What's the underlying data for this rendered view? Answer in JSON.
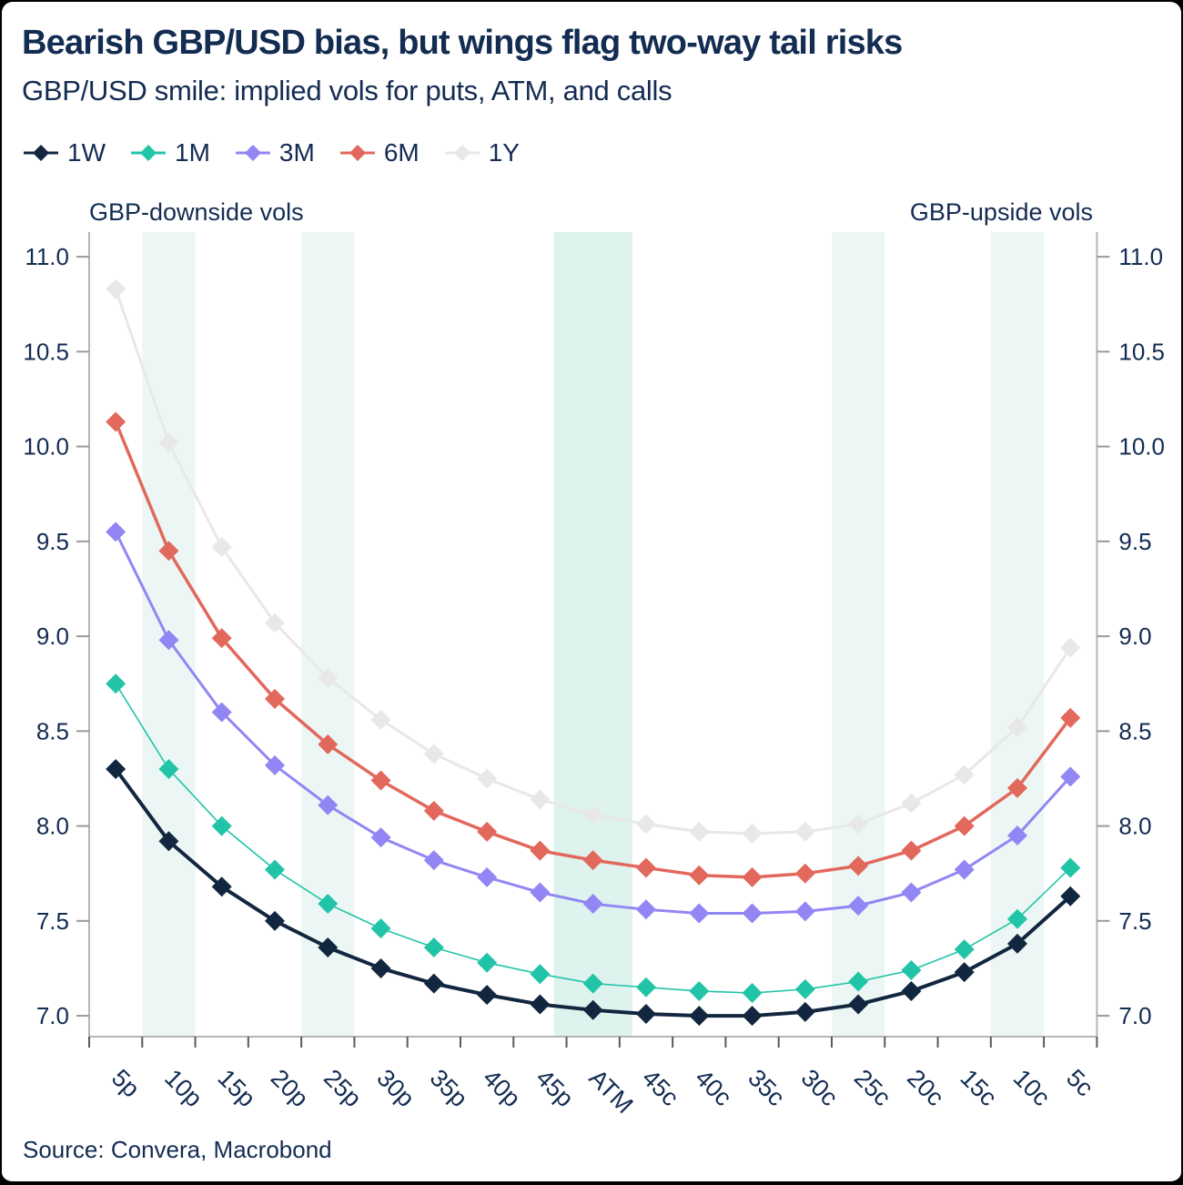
{
  "chart_data": {
    "type": "line",
    "title": "Bearish GBP/USD bias, but wings flag two-way tail risks",
    "subtitle": "GBP/USD smile: implied vols for puts, ATM, and calls",
    "left_axis_label": "GBP-downside vols",
    "right_axis_label": "GBP-upside vols",
    "source": "Source: Convera, Macrobond",
    "categories": [
      "5p",
      "10p",
      "15p",
      "20p",
      "25p",
      "30p",
      "35p",
      "40p",
      "45p",
      "ATM",
      "45c",
      "40c",
      "35c",
      "30c",
      "25c",
      "20c",
      "15c",
      "10c",
      "5c"
    ],
    "series": [
      {
        "name": "1W",
        "color": "#12263f",
        "line_width": 4,
        "marker": "diamond",
        "values": [
          8.3,
          7.92,
          7.68,
          7.5,
          7.36,
          7.25,
          7.17,
          7.11,
          7.06,
          7.03,
          7.01,
          7.0,
          7.0,
          7.02,
          7.06,
          7.13,
          7.23,
          7.38,
          7.63
        ]
      },
      {
        "name": "1M",
        "color": "#22c4a8",
        "line_width": 1.6,
        "marker": "diamond",
        "values": [
          8.75,
          8.3,
          8.0,
          7.77,
          7.59,
          7.46,
          7.36,
          7.28,
          7.22,
          7.17,
          7.15,
          7.13,
          7.12,
          7.14,
          7.18,
          7.24,
          7.35,
          7.51,
          7.78
        ]
      },
      {
        "name": "3M",
        "color": "#9186f4",
        "line_width": 3,
        "marker": "diamond",
        "values": [
          9.55,
          8.98,
          8.6,
          8.32,
          8.11,
          7.94,
          7.82,
          7.73,
          7.65,
          7.59,
          7.56,
          7.54,
          7.54,
          7.55,
          7.58,
          7.65,
          7.77,
          7.95,
          8.26
        ]
      },
      {
        "name": "6M",
        "color": "#e2685c",
        "line_width": 3.5,
        "marker": "diamond",
        "values": [
          10.13,
          9.45,
          8.99,
          8.67,
          8.43,
          8.24,
          8.08,
          7.97,
          7.87,
          7.82,
          7.78,
          7.74,
          7.73,
          7.75,
          7.79,
          7.87,
          8.0,
          8.2,
          8.57
        ]
      },
      {
        "name": "1Y",
        "color": "#e8e8e8",
        "line_width": 3,
        "marker": "diamond",
        "values": [
          10.83,
          10.02,
          9.47,
          9.07,
          8.78,
          8.56,
          8.38,
          8.25,
          8.14,
          8.06,
          8.01,
          7.97,
          7.96,
          7.97,
          8.01,
          8.12,
          8.27,
          8.52,
          8.94
        ]
      }
    ],
    "yticks": [
      7.0,
      7.5,
      8.0,
      8.5,
      9.0,
      9.5,
      10.0,
      10.5,
      11.0
    ],
    "ylim": [
      6.89,
      11.13
    ],
    "grid": false,
    "legend_position": "top-left",
    "highlight_bands": [
      {
        "category": "10p",
        "color": "#ecf7f5",
        "pad": 0
      },
      {
        "category": "25p",
        "color": "#ecf7f5",
        "pad": 0
      },
      {
        "category": "ATM",
        "color": "#def2ee",
        "pad": 14
      },
      {
        "category": "25c",
        "color": "#ecf7f5",
        "pad": 0
      },
      {
        "category": "10c",
        "color": "#ecf7f5",
        "pad": 0
      }
    ],
    "colors": {
      "text": "#132c52",
      "axis_line": "#b5b5b5",
      "x_tick": "#5a5a5a",
      "y_tick": "#9a9a9a"
    }
  }
}
